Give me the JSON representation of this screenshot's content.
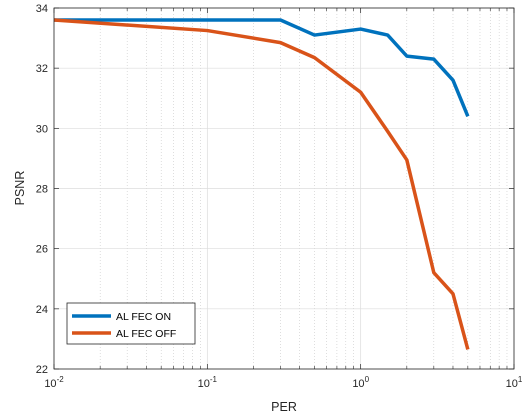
{
  "chart_data": {
    "type": "line",
    "xscale": "log",
    "xlabel": "PER",
    "ylabel": "PSNR",
    "xlim": [
      0.01,
      10
    ],
    "ylim": [
      22,
      34
    ],
    "xticks": [
      {
        "value": 0.01,
        "base": "10",
        "exp": "-2"
      },
      {
        "value": 0.1,
        "base": "10",
        "exp": "-1"
      },
      {
        "value": 1,
        "base": "10",
        "exp": "0"
      },
      {
        "value": 10,
        "base": "10",
        "exp": "1"
      }
    ],
    "yticks": [
      22,
      24,
      26,
      28,
      30,
      32,
      34
    ],
    "grid": true,
    "minor_grid": true,
    "legend_location": "bottom-left",
    "series": [
      {
        "name": "AL FEC ON",
        "color": "#0072BD",
        "x": [
          0.01,
          0.1,
          0.3,
          0.5,
          1,
          1.5,
          2,
          3,
          4,
          5
        ],
        "y": [
          33.6,
          33.6,
          33.6,
          33.1,
          33.3,
          33.1,
          32.4,
          32.3,
          31.6,
          30.4
        ]
      },
      {
        "name": "AL FEC OFF",
        "color": "#D95319",
        "x": [
          0.01,
          0.1,
          0.3,
          0.5,
          1,
          1.5,
          2,
          3,
          4,
          5
        ],
        "y": [
          33.6,
          33.25,
          32.85,
          32.35,
          31.2,
          29.9,
          28.95,
          25.2,
          24.5,
          22.65
        ]
      }
    ]
  }
}
